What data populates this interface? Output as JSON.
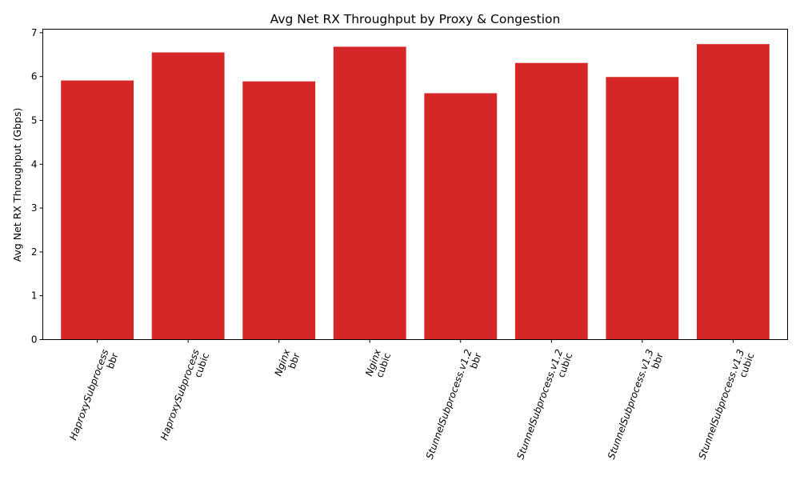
{
  "chart_data": {
    "type": "bar",
    "title": "Avg Net RX Throughput by Proxy & Congestion",
    "xlabel": "",
    "ylabel": "Avg Net RX Throughput (Gbps)",
    "ylim": [
      0,
      7.08
    ],
    "yticks": [
      "0",
      "1",
      "2",
      "3",
      "4",
      "5",
      "6",
      "7"
    ],
    "categories": [
      [
        "HaproxySubprocess",
        "bbr"
      ],
      [
        "HaproxySubprocess",
        "cubic"
      ],
      [
        "Nginx",
        "bbr"
      ],
      [
        "Nginx",
        "cubic"
      ],
      [
        "StunnelSubprocess.v1.2",
        "bbr"
      ],
      [
        "StunnelSubprocess.v1.2",
        "cubic"
      ],
      [
        "StunnelSubprocess.v1.3",
        "bbr"
      ],
      [
        "StunnelSubprocess.v1.3",
        "cubic"
      ]
    ],
    "values": [
      5.91,
      6.55,
      5.89,
      6.68,
      5.62,
      6.31,
      5.99,
      6.74
    ],
    "bar_color": "#d62728",
    "grid": false,
    "legend": "none"
  }
}
